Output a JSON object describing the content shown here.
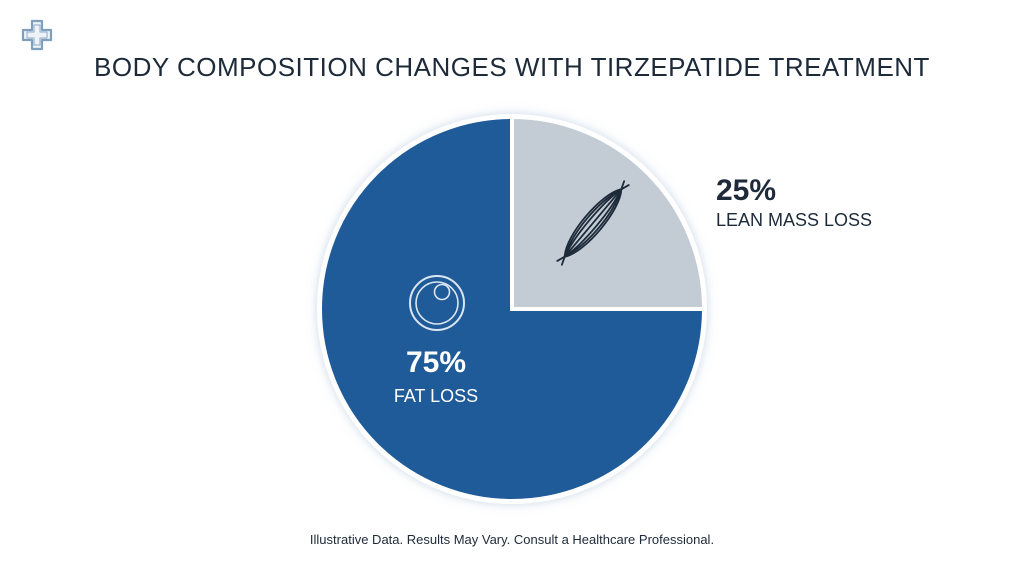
{
  "chart_data": {
    "type": "pie",
    "title": "BODY COMPOSITION CHANGES WITH TIRZEPATIDE TREATMENT",
    "slices": [
      {
        "label": "LEAN MASS LOSS",
        "value": 25,
        "value_label": "25%",
        "color": "#c3ccd4",
        "icon": "muscle-icon"
      },
      {
        "label": "FAT LOSS",
        "value": 75,
        "value_label": "75%",
        "color": "#1f5b99",
        "icon": "fat-cell-icon"
      }
    ],
    "footnote": "Illustrative Data. Results May Vary. Consult a Healthcare Professional."
  },
  "logo": {
    "icon": "medical-cross-icon",
    "color": "#7f9fbf"
  }
}
